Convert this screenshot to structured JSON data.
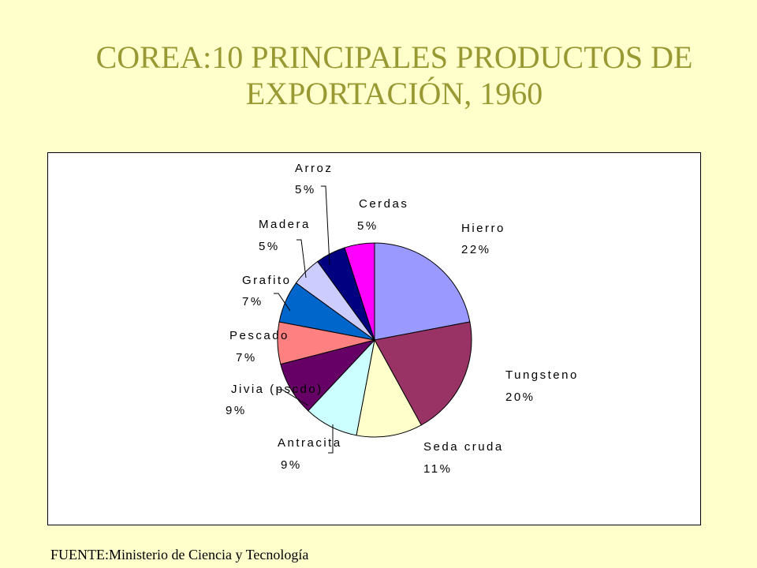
{
  "title_line1": "COREA:10 PRINCIPALES PRODUCTOS DE",
  "title_line2": "EXPORTACIÓN, 1960",
  "source": "FUENTE:Ministerio de Ciencia y Tecnología",
  "colors": {
    "background": "#FFFFCC",
    "title": "#999933",
    "plot_area": "#FFFFFF"
  },
  "chart_data": {
    "type": "pie",
    "title": "COREA:10 PRINCIPALES PRODUCTOS DE EXPORTACIÓN, 1960",
    "unit": "%",
    "legend": "none",
    "slices": [
      {
        "label": "Hierro",
        "value": 22,
        "value_label": "22%",
        "color": "#9999FF"
      },
      {
        "label": "Tungsteno",
        "value": 20,
        "value_label": "20%",
        "color": "#993366"
      },
      {
        "label": "Seda cruda",
        "value": 11,
        "value_label": "11%",
        "color": "#FFFFCC"
      },
      {
        "label": "Antracita",
        "value": 9,
        "value_label": "9%",
        "color": "#CCFFFF"
      },
      {
        "label": "Jivia (pscdo)",
        "value": 9,
        "value_label": "9%",
        "color": "#660066"
      },
      {
        "label": "Pescado",
        "value": 7,
        "value_label": "7%",
        "color": "#FF8080"
      },
      {
        "label": "Grafito",
        "value": 7,
        "value_label": "7%",
        "color": "#0066CC"
      },
      {
        "label": "Madera",
        "value": 5,
        "value_label": "5%",
        "color": "#CCCCFF"
      },
      {
        "label": "Arroz",
        "value": 5,
        "value_label": "5%",
        "color": "#000080"
      },
      {
        "label": "Cerdas",
        "value": 5,
        "value_label": "5%",
        "color": "#FF00FF"
      }
    ]
  }
}
